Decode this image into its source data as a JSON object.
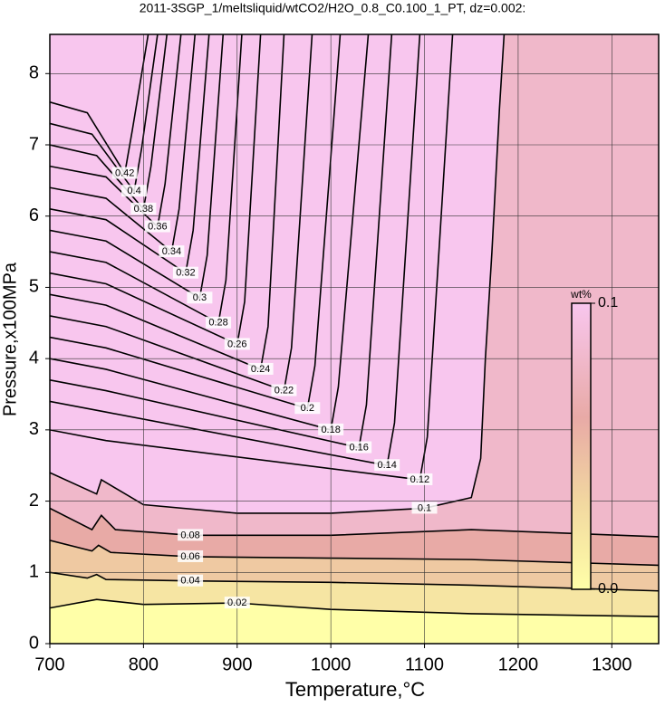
{
  "chart_data": {
    "type": "contour",
    "title": "2011-3SGP_1/meltsliquid/wtCO2/H2O_0.8_C0.100_1_PT, dz=0.002:",
    "x_label": "Temperature,°C",
    "y_label": "Pressure,x100MPa",
    "xlim": [
      700,
      1350
    ],
    "ylim": [
      0,
      8.55
    ],
    "xticks": [
      700,
      800,
      900,
      1000,
      1100,
      1200,
      1300
    ],
    "yticks": [
      0,
      1,
      2,
      3,
      4,
      5,
      6,
      7,
      8
    ],
    "grid": true,
    "base_color": "#ffffa8",
    "colormap": [
      {
        "value": 0,
        "color": "#ffffa8"
      },
      {
        "value": 0.03,
        "color": "#f2d8a0"
      },
      {
        "value": 0.06,
        "color": "#e8aaa6"
      },
      {
        "value": 0.1,
        "color": "#f8c6ee"
      }
    ],
    "colorbar": {
      "label": "wt%",
      "range": [
        0,
        0.1
      ],
      "ticks": [
        {
          "value": 0,
          "label": "0.0"
        },
        0.1
      ]
    },
    "contours": [
      {
        "level": 0.02,
        "x": [
          700,
          750,
          800,
          900,
          1000,
          1150,
          1350
        ],
        "y": [
          0.5,
          0.62,
          0.55,
          0.57,
          0.48,
          0.42,
          0.38
        ]
      },
      {
        "level": 0.04,
        "x": [
          700,
          740,
          750,
          760,
          850,
          1000,
          1150,
          1350
        ],
        "y": [
          1.0,
          0.92,
          0.97,
          0.9,
          0.88,
          0.86,
          0.82,
          0.74
        ]
      },
      {
        "level": 0.06,
        "x": [
          700,
          745,
          752,
          765,
          850,
          1000,
          1150,
          1350
        ],
        "y": [
          1.45,
          1.3,
          1.38,
          1.28,
          1.22,
          1.2,
          1.18,
          1.1
        ]
      },
      {
        "level": 0.08,
        "x": [
          700,
          745,
          755,
          770,
          850,
          1000,
          1150,
          1350
        ],
        "y": [
          1.9,
          1.6,
          1.8,
          1.6,
          1.52,
          1.52,
          1.6,
          1.5
        ]
      },
      {
        "level": 0.1,
        "x": [
          700,
          750,
          755,
          800,
          900,
          1000,
          1100,
          1150,
          1160,
          1165,
          1172,
          1180,
          1185
        ],
        "y": [
          2.4,
          2.1,
          2.3,
          1.95,
          1.83,
          1.83,
          1.9,
          2.05,
          2.6,
          4,
          5.5,
          7.5,
          8.55
        ]
      },
      {
        "level": 0.12,
        "x": [
          700,
          760,
          1095,
          1103,
          1130
        ],
        "y": [
          3.0,
          2.85,
          2.3,
          2.9,
          8.55
        ]
      },
      {
        "level": 0.14,
        "x": [
          700,
          760,
          1060,
          1068,
          1095
        ],
        "y": [
          3.4,
          3.25,
          2.5,
          3.1,
          8.55
        ]
      },
      {
        "level": 0.16,
        "x": [
          700,
          760,
          1030,
          1038,
          1065
        ],
        "y": [
          3.7,
          3.55,
          2.75,
          3.35,
          8.55
        ]
      },
      {
        "level": 0.18,
        "x": [
          700,
          760,
          1000,
          1008,
          1040
        ],
        "y": [
          4.0,
          3.85,
          3.0,
          3.6,
          8.55
        ]
      },
      {
        "level": 0.2,
        "x": [
          700,
          760,
          975,
          983,
          1010
        ],
        "y": [
          4.3,
          4.15,
          3.3,
          3.9,
          8.55
        ]
      },
      {
        "level": 0.22,
        "x": [
          700,
          760,
          950,
          958,
          980
        ],
        "y": [
          4.6,
          4.45,
          3.55,
          4.15,
          8.55
        ]
      },
      {
        "level": 0.24,
        "x": [
          700,
          760,
          925,
          933,
          950
        ],
        "y": [
          4.9,
          4.75,
          3.85,
          4.45,
          8.55
        ]
      },
      {
        "level": 0.26,
        "x": [
          700,
          760,
          900,
          908,
          925
        ],
        "y": [
          5.2,
          5.05,
          4.2,
          4.8,
          8.55
        ]
      },
      {
        "level": 0.28,
        "x": [
          700,
          760,
          880,
          888,
          905
        ],
        "y": [
          5.5,
          5.35,
          4.5,
          5.1,
          8.55
        ]
      },
      {
        "level": 0.3,
        "x": [
          700,
          760,
          860,
          868,
          885
        ],
        "y": [
          5.8,
          5.65,
          4.85,
          5.45,
          8.55
        ]
      },
      {
        "level": 0.32,
        "x": [
          700,
          760,
          845,
          853,
          870
        ],
        "y": [
          6.1,
          5.95,
          5.2,
          5.8,
          8.55
        ]
      },
      {
        "level": 0.34,
        "x": [
          700,
          760,
          830,
          838,
          855
        ],
        "y": [
          6.4,
          6.25,
          5.5,
          6.1,
          8.55
        ]
      },
      {
        "level": 0.36,
        "x": [
          700,
          760,
          815,
          823,
          840
        ],
        "y": [
          6.7,
          6.55,
          5.85,
          6.45,
          8.55
        ]
      },
      {
        "level": 0.38,
        "x": [
          700,
          750,
          800,
          808,
          825
        ],
        "y": [
          7.0,
          6.85,
          6.1,
          6.7,
          8.55
        ]
      },
      {
        "level": 0.4,
        "x": [
          700,
          745,
          790,
          798,
          815
        ],
        "y": [
          7.3,
          7.15,
          6.35,
          6.95,
          8.55
        ]
      },
      {
        "level": 0.42,
        "x": [
          700,
          740,
          780,
          788,
          805
        ],
        "y": [
          7.6,
          7.45,
          6.6,
          7.2,
          8.55
        ]
      }
    ]
  }
}
